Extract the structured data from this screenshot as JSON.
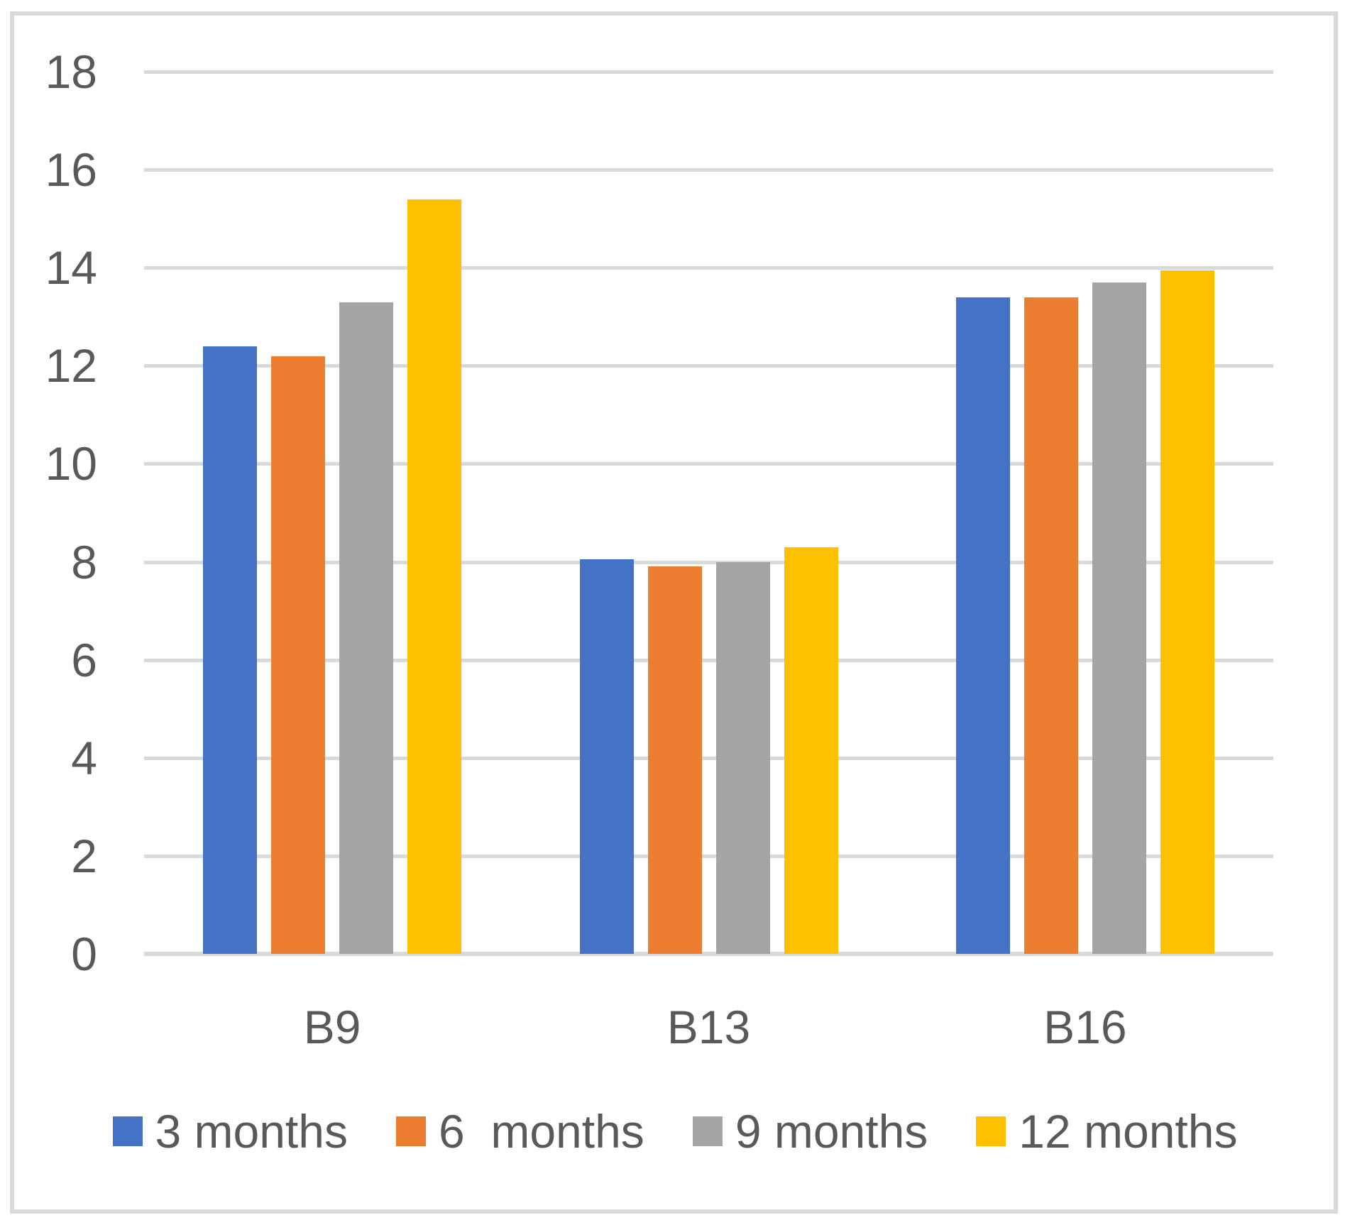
{
  "chart_data": {
    "type": "bar",
    "title": "",
    "xlabel": "",
    "ylabel": "",
    "categories": [
      "B9",
      "B13",
      "B16"
    ],
    "series": [
      {
        "name": "3 months",
        "color": "#4472C4",
        "values": [
          12.4,
          8.05,
          13.4
        ]
      },
      {
        "name": "6  months",
        "color": "#ED7D31",
        "values": [
          12.2,
          7.9,
          13.4
        ]
      },
      {
        "name": "9 months",
        "color": "#A5A5A5",
        "values": [
          13.3,
          8.0,
          13.7
        ]
      },
      {
        "name": "12 months",
        "color": "#FFC000",
        "values": [
          15.4,
          8.3,
          13.95
        ]
      }
    ],
    "ylim": [
      0,
      18
    ],
    "yticks": [
      0,
      2,
      4,
      6,
      8,
      10,
      12,
      14,
      16,
      18
    ],
    "grid": true,
    "legend_position": "bottom"
  },
  "colors": {
    "background": "#FFFFFF",
    "border": "#D9D9D9",
    "gridline": "#D9D9D9",
    "axis_text": "#595959"
  }
}
